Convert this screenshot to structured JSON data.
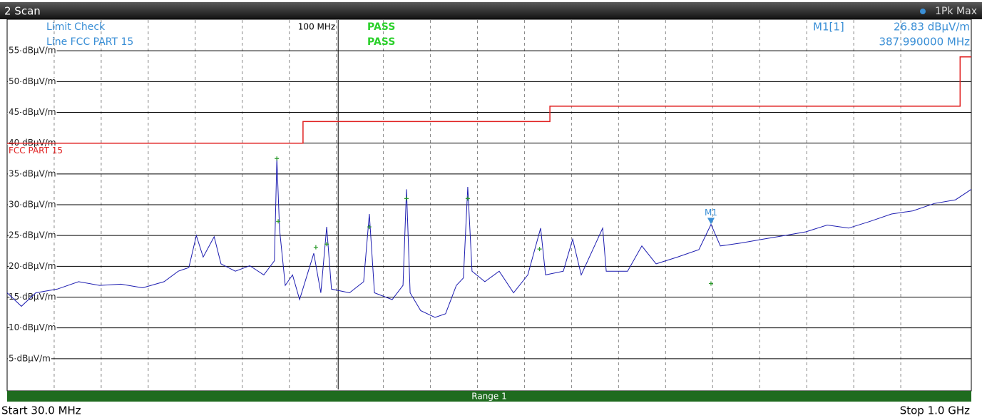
{
  "chart_data": {
    "type": "line",
    "title": "2 Scan",
    "trace_label": "1Pk Max",
    "xscale": "log",
    "xlim": [
      30,
      1000
    ],
    "ylim": [
      0,
      60
    ],
    "yticks": [
      {
        "value": 5,
        "label": "5 dBµV/m"
      },
      {
        "value": 10,
        "label": "10 dBµV/m"
      },
      {
        "value": 15,
        "label": "15 dBµV/m"
      },
      {
        "value": 20,
        "label": "20 dBµV/m"
      },
      {
        "value": 25,
        "label": "25 dBµV/m"
      },
      {
        "value": 30,
        "label": "30 dBµV/m"
      },
      {
        "value": 35,
        "label": "35 dBµV/m"
      },
      {
        "value": 40,
        "label": "40 dBµV/m"
      },
      {
        "value": 45,
        "label": "45 dBµV/m"
      },
      {
        "value": 50,
        "label": "50 dBµV/m"
      },
      {
        "value": 55,
        "label": "55 dBµV/m"
      }
    ],
    "grid": true,
    "series": [
      {
        "name": "1Pk Max",
        "color": "#1c1cb0",
        "x": [
          30,
          31.6,
          33.3,
          36.0,
          38.9,
          42.0,
          45.4,
          49.1,
          53.1,
          55.9,
          58.1,
          59.7,
          61.2,
          63.7,
          65.3,
          68.8,
          72.5,
          76.3,
          79.3,
          80.0,
          80.8,
          82.5,
          84.7,
          86.9,
          91.5,
          93.9,
          95.9,
          97.6,
          104.2,
          109.7,
          112.0,
          114.1,
          121.7,
          126.6,
          128.2,
          129.9,
          135.0,
          142.2,
          147.8,
          153.7,
          157.7,
          160.2,
          162.7,
          170.5,
          179.6,
          189.2,
          199.3,
          208.8,
          212.6,
          226.8,
          234.6,
          242.0,
          261.7,
          265.1,
          286.5,
          301.7,
          317.8,
          343.5,
          371.3,
          387.99,
          401.4,
          433.9,
          469.0,
          506.9,
          547.8,
          592.2,
          640.2,
          692.1,
          748.0,
          808.4,
          873.9,
          944.4,
          1000
        ],
        "values": [
          15.7,
          13.5,
          15.7,
          16.3,
          17.5,
          16.9,
          17.1,
          16.5,
          17.5,
          19.2,
          19.8,
          25.0,
          21.5,
          24.8,
          20.4,
          19.2,
          20.1,
          18.6,
          20.9,
          37.5,
          26.0,
          16.9,
          18.6,
          14.6,
          22.1,
          15.7,
          26.4,
          16.3,
          15.7,
          17.5,
          28.5,
          15.7,
          14.6,
          16.9,
          32.5,
          15.7,
          12.8,
          11.7,
          12.3,
          16.9,
          18.1,
          32.9,
          19.2,
          17.5,
          19.2,
          15.7,
          18.6,
          26.2,
          18.6,
          19.2,
          24.4,
          18.6,
          26.2,
          19.2,
          19.2,
          23.3,
          20.4,
          21.5,
          22.7,
          26.8,
          23.3,
          23.8,
          24.4,
          25.0,
          25.6,
          26.7,
          26.2,
          27.3,
          28.5,
          29.0,
          30.2,
          30.8,
          32.5
        ]
      },
      {
        "name": "FCC PART 15",
        "color": "#e02020",
        "x": [
          30,
          88,
          88,
          216,
          216,
          960,
          960,
          1000
        ],
        "values": [
          40,
          40,
          43.5,
          43.5,
          46,
          46,
          54,
          54
        ]
      }
    ],
    "peak_markers": {
      "color": "#2a9a2a",
      "x": [
        80.0,
        80.4,
        92.2,
        95.9,
        112.0,
        128.2,
        160.2,
        208.0,
        388.0
      ],
      "values": [
        37.5,
        27.3,
        23.1,
        23.6,
        26.4,
        31.0,
        31.0,
        22.8,
        17.2
      ]
    },
    "annotations": [
      {
        "text": "100 MHz",
        "x": 100
      }
    ],
    "limit_check": {
      "title": "Limit Check",
      "result": "PASS",
      "line": "Line FCC PART 15",
      "line_result": "PASS"
    },
    "marker": {
      "label": "M1",
      "readout": "M1[1]",
      "x": 387.99,
      "value": 26.83,
      "value_label": "26.83 dBµV/m",
      "x_label": "387.990000 MHz"
    },
    "range_label": "Range 1",
    "start_label": "Start 30.0 MHz",
    "stop_label": "Stop 1.0 GHz"
  }
}
